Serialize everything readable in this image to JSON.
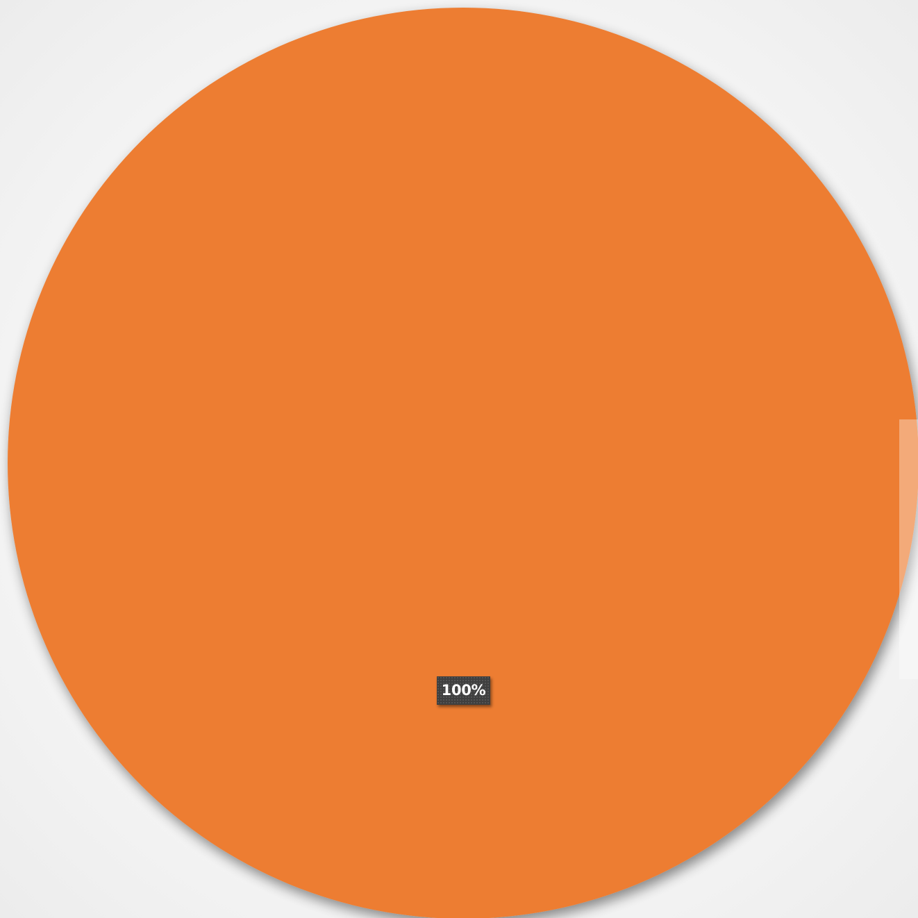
{
  "chart_data": {
    "type": "pie",
    "categories": [
      ""
    ],
    "values": [
      100
    ],
    "colors": [
      "#ED7D31"
    ],
    "data_labels": [
      "100%"
    ],
    "legend": "none"
  }
}
